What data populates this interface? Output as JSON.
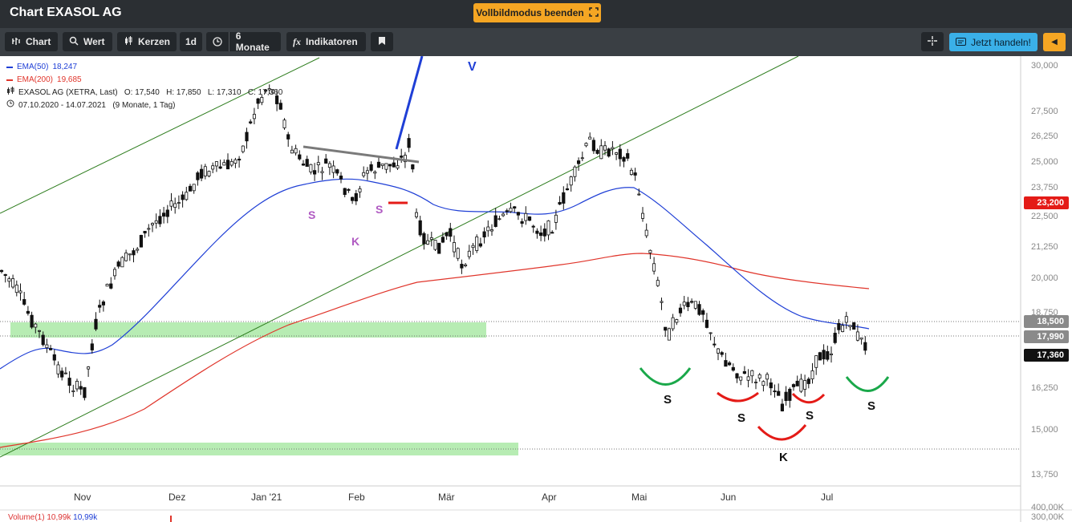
{
  "window": {
    "title": "Chart EXASOL AG"
  },
  "fullscreen_button": {
    "label": "Vollbildmodus beenden",
    "icon": "fullscreen-exit-icon"
  },
  "toolbar": {
    "chart_label": "Chart",
    "wert_label": "Wert",
    "kerzen_label": "Kerzen",
    "interval_label": "1d",
    "range_label": "6 Monate",
    "indicators_label": "Indikatoren",
    "bookmark_icon": "bookmark-icon",
    "crosshair_icon": "crosshair-icon",
    "trade_label": "Jetzt handeln!",
    "collapse_icon": "chevron-left-icon"
  },
  "legend": {
    "ema50_label": "EMA(50)",
    "ema50_value": "18,247",
    "ema200_label": "EMA(200)",
    "ema200_value": "19,685",
    "quote_line": "EXASOL AG (XETRA, Last)   O: 17,540   H: 17,850   L: 17,310   C: 17,360",
    "period_line": "07.10.2020 - 14.07.2021   (9 Monate, 1 Tag)"
  },
  "colors": {
    "ema50": "#1f3fd6",
    "ema200": "#e0352b",
    "trend": "#2e7d1e",
    "zone": "#9fe59a",
    "red_tag": "#e41b17"
  },
  "yaxis": {
    "ticks": [
      "30,000",
      "27,500",
      "26,250",
      "25,000",
      "23,750",
      "22,500",
      "21,250",
      "20,000",
      "18,750",
      "16,250",
      "15,000",
      "13,750",
      "400,00K",
      "300,00K"
    ]
  },
  "price_tags": [
    {
      "value": "23,200",
      "style": "red"
    },
    {
      "value": "18,500",
      "style": "gray"
    },
    {
      "value": "17,990",
      "style": "gray"
    },
    {
      "value": "17,360",
      "style": "black"
    }
  ],
  "xaxis": {
    "months": [
      "Nov",
      "Dez",
      "Jan '21",
      "Feb",
      "Mär",
      "Apr",
      "Mai",
      "Jun",
      "Jul"
    ]
  },
  "annotations": {
    "purple": [
      "S",
      "S",
      "K"
    ],
    "black": [
      "S",
      "S",
      "S",
      "S",
      "K"
    ],
    "blue": "V"
  },
  "volume": {
    "label": "Volume(1)",
    "value_red": "10,99k",
    "value_blue": "10,99k"
  }
}
